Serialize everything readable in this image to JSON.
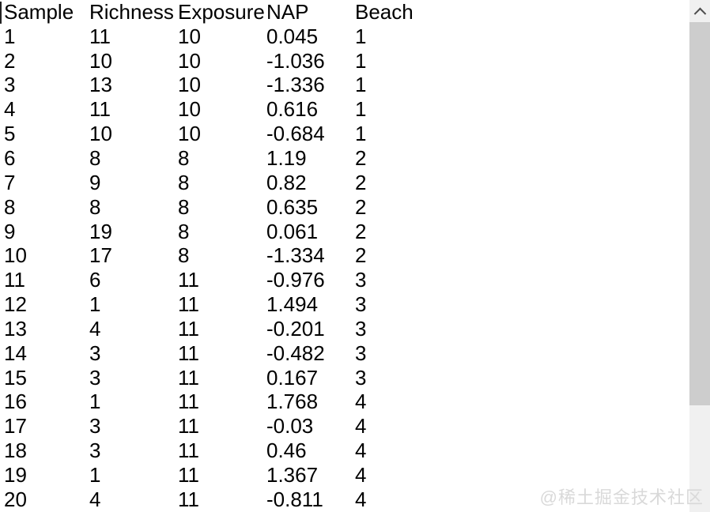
{
  "table": {
    "columns": [
      "Sample",
      "Richness",
      "Exposure",
      "NAP",
      "Beach"
    ],
    "rows": [
      [
        "1",
        "11",
        "10",
        "0.045",
        "1"
      ],
      [
        "2",
        "10",
        "10",
        "-1.036",
        "1"
      ],
      [
        "3",
        "13",
        "10",
        "-1.336",
        "1"
      ],
      [
        "4",
        "11",
        "10",
        "0.616",
        "1"
      ],
      [
        "5",
        "10",
        "10",
        "-0.684",
        "1"
      ],
      [
        "6",
        "8",
        "8",
        "1.19",
        "2"
      ],
      [
        "7",
        "9",
        "8",
        "0.82",
        "2"
      ],
      [
        "8",
        "8",
        "8",
        "0.635",
        "2"
      ],
      [
        "9",
        "19",
        "8",
        "0.061",
        "2"
      ],
      [
        "10",
        "17",
        "8",
        "-1.334",
        "2"
      ],
      [
        "11",
        "6",
        "11",
        "-0.976",
        "3"
      ],
      [
        "12",
        "1",
        "11",
        "1.494",
        "3"
      ],
      [
        "13",
        "4",
        "11",
        "-0.201",
        "3"
      ],
      [
        "14",
        "3",
        "11",
        "-0.482",
        "3"
      ],
      [
        "15",
        "3",
        "11",
        "0.167",
        "3"
      ],
      [
        "16",
        "1",
        "11",
        "1.768",
        "4"
      ],
      [
        "17",
        "3",
        "11",
        "-0.03",
        "4"
      ],
      [
        "18",
        "3",
        "11",
        "0.46",
        "4"
      ],
      [
        "19",
        "1",
        "11",
        "1.367",
        "4"
      ],
      [
        "20",
        "4",
        "11",
        "-0.811",
        "4"
      ]
    ]
  },
  "scrollbar": {
    "up_arrow_icon": "chevron-up"
  },
  "watermark": {
    "text": "@稀土掘金技术社区"
  },
  "colors": {
    "background": "#ffffff",
    "text": "#000000",
    "scrollbar_track": "#f0f0f0",
    "scrollbar_thumb": "#cdcdcd",
    "scrollbar_arrow": "#4d4d4d",
    "watermark": "#d9d9d9"
  }
}
